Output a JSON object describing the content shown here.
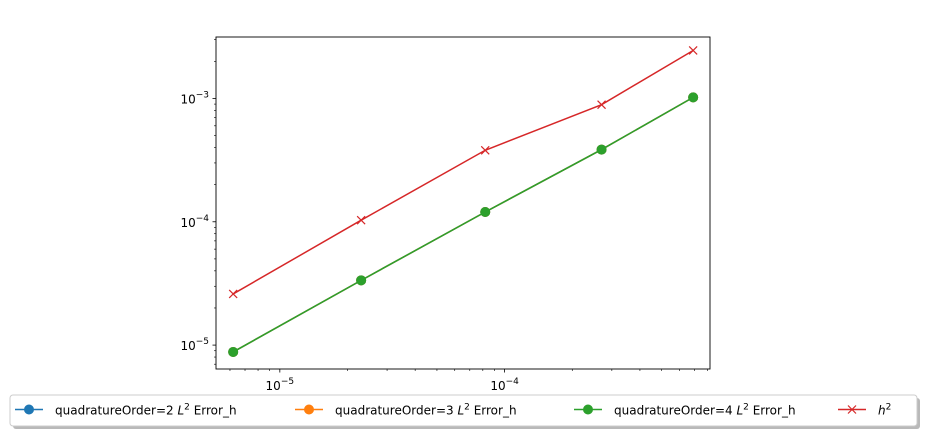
{
  "chart_data": {
    "type": "line",
    "xscale": "log",
    "yscale": "log",
    "xlim": [
      5.2e-06,
      0.00082
    ],
    "ylim": [
      6.4e-06,
      0.00315
    ],
    "x_ticks": [
      {
        "value": 1e-05,
        "base": "10",
        "exp": "−5"
      },
      {
        "value": 0.0001,
        "base": "10",
        "exp": "−4"
      }
    ],
    "y_ticks": [
      {
        "value": 1e-05,
        "base": "10",
        "exp": "−5"
      },
      {
        "value": 0.0001,
        "base": "10",
        "exp": "−4"
      },
      {
        "value": 0.001,
        "base": "10",
        "exp": "−3"
      }
    ],
    "grid": false,
    "legend_position": "below, centered, single row",
    "series": [
      {
        "name_pre": "quadratureOrder=2 ",
        "name_math": "L",
        "name_sup": "2",
        "name_post": " Error_h",
        "color": "#1f77b4",
        "marker": "circle",
        "x": [
          6.2e-06,
          2.3e-05,
          8.2e-05,
          0.00027,
          0.00069
        ],
        "y": [
          8.8e-06,
          3.35e-05,
          0.00012,
          0.000385,
          0.00102
        ]
      },
      {
        "name_pre": "quadratureOrder=3 ",
        "name_math": "L",
        "name_sup": "2",
        "name_post": " Error_h",
        "color": "#ff7f0e",
        "marker": "circle",
        "x": [
          6.2e-06,
          2.3e-05,
          8.2e-05,
          0.00027,
          0.00069
        ],
        "y": [
          8.8e-06,
          3.35e-05,
          0.00012,
          0.000385,
          0.00102
        ]
      },
      {
        "name_pre": "quadratureOrder=4 ",
        "name_math": "L",
        "name_sup": "2",
        "name_post": " Error_h",
        "color": "#2ca02c",
        "marker": "circle",
        "x": [
          6.2e-06,
          2.3e-05,
          8.2e-05,
          0.00027,
          0.00069
        ],
        "y": [
          8.8e-06,
          3.35e-05,
          0.00012,
          0.000385,
          0.00102
        ]
      },
      {
        "name_pre": "",
        "name_math": "h",
        "name_sup": "2",
        "name_post": "",
        "color": "#d62728",
        "marker": "x",
        "x": [
          6.2e-06,
          2.3e-05,
          8.2e-05,
          0.00027,
          0.00069
        ],
        "y": [
          2.6e-05,
          0.000103,
          0.00038,
          0.00089,
          0.00245
        ]
      }
    ]
  }
}
